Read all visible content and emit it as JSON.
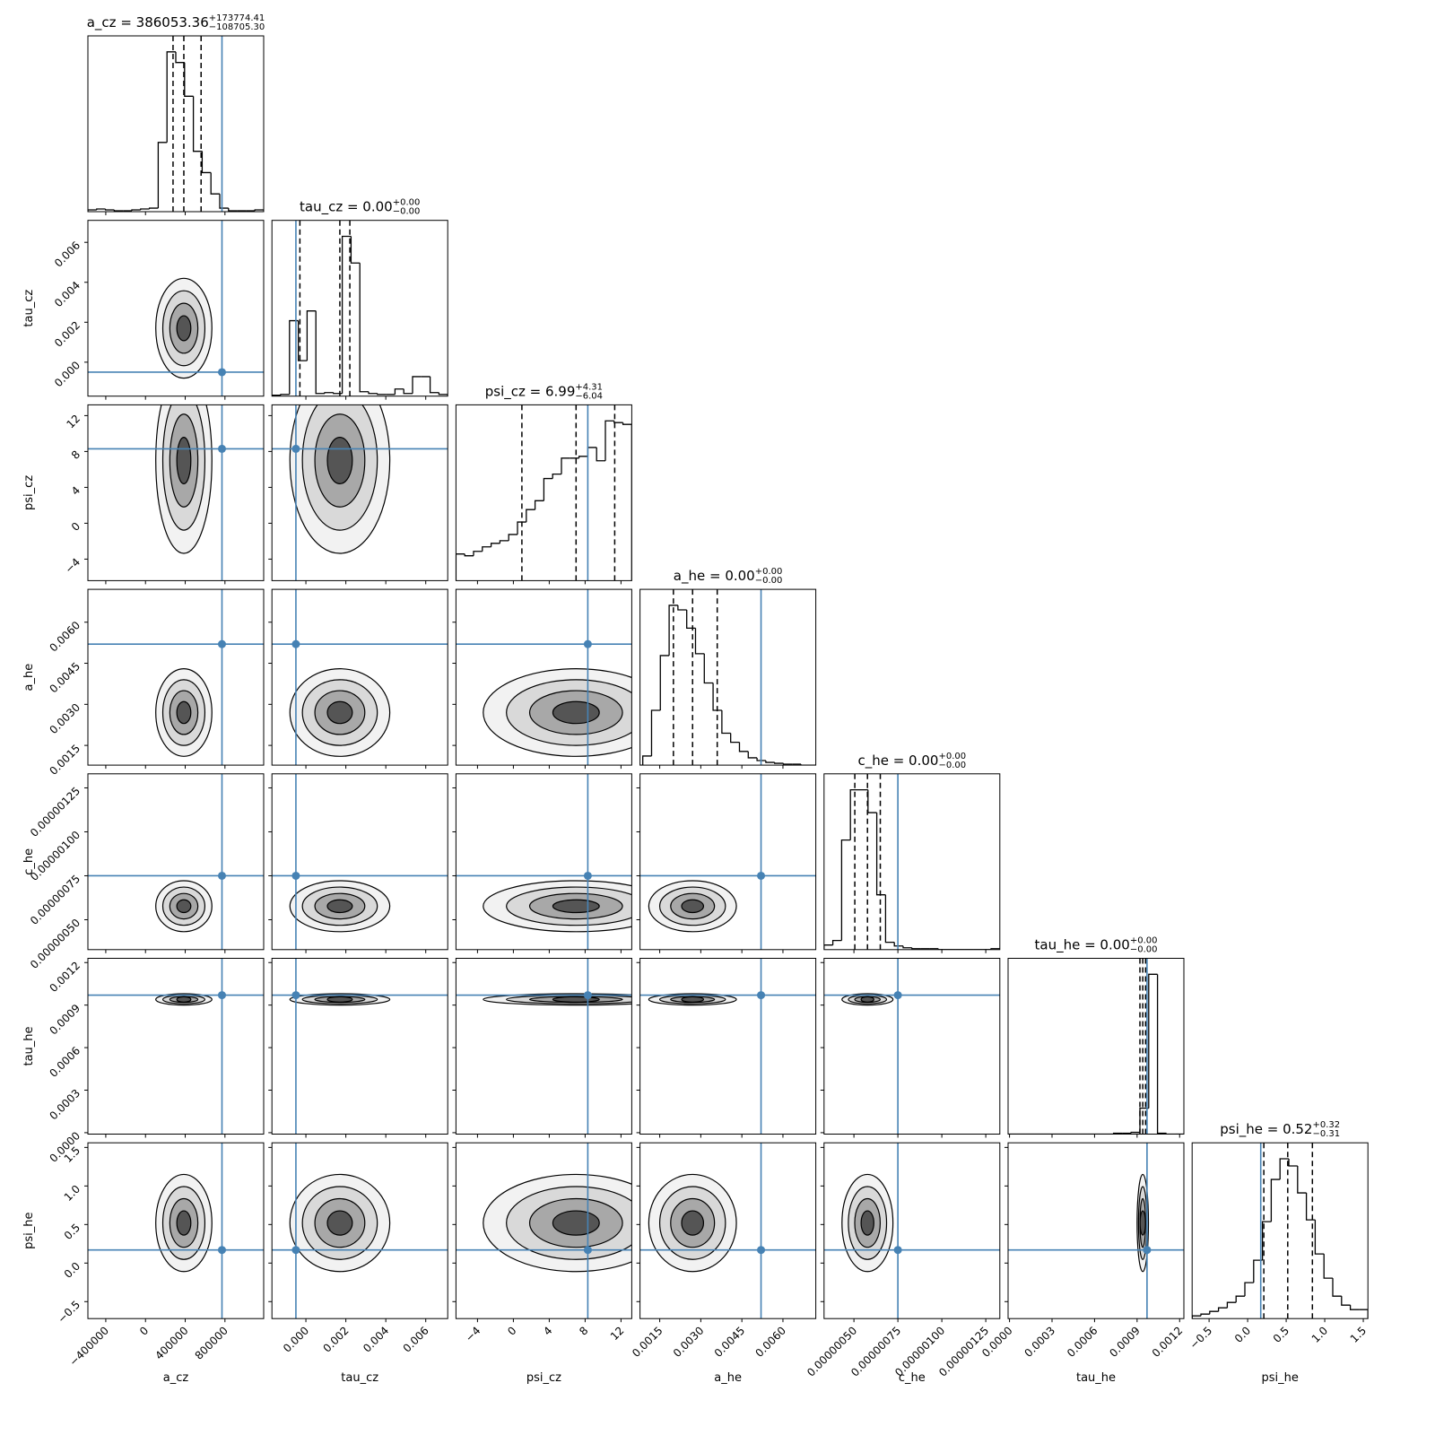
{
  "chart_data": {
    "type": "corner",
    "truth_color": "#4682b4",
    "params": [
      {
        "label": "a_cz",
        "title": "a_cz = 386053.36",
        "title_sup": "+173774.41",
        "title_sub": "−108705.30",
        "lim": [
          -580000,
          1190000
        ],
        "truth": 770000,
        "quantiles": [
          277348.06,
          386053.36,
          559827.77
        ],
        "ticks": [
          {
            "value": -400000,
            "label": "−400000"
          },
          0,
          400000,
          800000
        ],
        "bins": [
          -580000,
          -491500,
          -403000,
          -314500,
          -226000,
          -137500,
          -49000,
          39500,
          128000,
          216500,
          305000,
          393500,
          482000,
          570500,
          659000,
          747500,
          836000,
          924500,
          1013000,
          1101500,
          1190000
        ],
        "counts": [
          2,
          3,
          2,
          1,
          1,
          2,
          3,
          4,
          78,
          180,
          168,
          130,
          68,
          44,
          20,
          4,
          1,
          1,
          1,
          2
        ]
      },
      {
        "label": "tau_cz",
        "title": "tau_cz = 0.00",
        "title_sup": "+0.00",
        "title_sub": "−0.00",
        "lim": [
          -0.0017,
          0.0071
        ],
        "truth": -0.0005,
        "quantiles": [
          -0.0003,
          0.0017,
          0.0022
        ],
        "ticks": [
          {
            "value": 0,
            "label": "0.000"
          },
          0.002,
          0.004,
          0.006
        ],
        "bins": [
          -0.0017,
          -0.00126,
          -0.00082,
          -0.00038,
          6e-05,
          0.0005,
          0.00094,
          0.00138,
          0.00182,
          0.00226,
          0.0027,
          0.00314,
          0.00358,
          0.00402,
          0.00446,
          0.0049,
          0.00534,
          0.00578,
          0.00622,
          0.00666,
          0.0071
        ],
        "counts": [
          1,
          2,
          85,
          40,
          96,
          3,
          4,
          3,
          180,
          150,
          5,
          3,
          2,
          2,
          8,
          3,
          22,
          22,
          4,
          2
        ]
      },
      {
        "label": "psi_cz",
        "title": "psi_cz = 6.99",
        "title_sup": "+4.31",
        "title_sub": "−6.04",
        "lim": [
          -6.4,
          13.2
        ],
        "truth": 8.3,
        "quantiles": [
          0.95,
          6.99,
          11.3
        ],
        "ticks": [
          {
            "value": -4,
            "label": "−4"
          },
          0,
          4,
          8,
          12
        ],
        "bins": [
          -6.4,
          -5.42,
          -4.44,
          -3.46,
          -2.48,
          -1.5,
          -0.52,
          0.46,
          1.44,
          2.42,
          3.4,
          4.38,
          5.36,
          6.34,
          7.32,
          8.3,
          9.28,
          10.26,
          11.24,
          12.22,
          13.2
        ],
        "counts": [
          30,
          28,
          33,
          38,
          42,
          45,
          52,
          66,
          80,
          90,
          115,
          120,
          138,
          138,
          140,
          150,
          135,
          180,
          178,
          176
        ]
      },
      {
        "label": "a_he",
        "title": "a_he = 0.00",
        "title_sup": "+0.00",
        "title_sub": "−0.00",
        "lim": [
          0.00078,
          0.0072
        ],
        "truth": 0.0052,
        "quantiles": [
          0.002,
          0.0027,
          0.0036
        ],
        "ticks": [
          0.0015,
          {
            "value": 0.003,
            "label": "0.0030"
          },
          0.0045,
          {
            "value": 0.006,
            "label": "0.0060"
          }
        ],
        "bins": [
          0.00078,
          0.000881,
          0.001202,
          0.001523,
          0.001844,
          0.002165,
          0.002486,
          0.002807,
          0.003128,
          0.003449,
          0.00377,
          0.004091,
          0.004412,
          0.004733,
          0.005054,
          0.005375,
          0.005696,
          0.006017,
          0.006338,
          0.006659,
          0.0072
        ],
        "counts": [
          0,
          10,
          60,
          120,
          175,
          170,
          150,
          122,
          90,
          60,
          35,
          25,
          15,
          8,
          5,
          3,
          2,
          1,
          1,
          0
        ]
      },
      {
        "label": "c_he",
        "title": "c_he = 0.00",
        "title_sup": "+0.00",
        "title_sub": "−0.00",
        "lim": [
          3.3e-07,
          1.33e-06
        ],
        "truth": 7.5e-07,
        "quantiles": [
          5.05e-07,
          5.77e-07,
          6.5e-07
        ],
        "ticks": [
          {
            "value": 5e-07,
            "label": "0.00000050"
          },
          {
            "value": 7.5e-07,
            "label": "0.00000075"
          },
          {
            "value": 1e-06,
            "label": "0.00000100"
          },
          {
            "value": 1.25e-06,
            "label": "0.00000125"
          }
        ],
        "bins": [
          3.3e-07,
          3.8e-07,
          4.3e-07,
          4.8e-07,
          5.3e-07,
          5.8e-07,
          6.3e-07,
          6.8e-07,
          7.3e-07,
          7.8e-07,
          8.3e-07,
          8.8e-07,
          9.3e-07,
          9.8e-07,
          1.03e-06,
          1.08e-06,
          1.13e-06,
          1.18e-06,
          1.23e-06,
          1.28e-06,
          1.33e-06
        ],
        "counts": [
          5,
          10,
          120,
          175,
          175,
          150,
          60,
          8,
          4,
          2,
          1,
          1,
          1,
          0,
          0,
          0,
          0,
          0,
          0,
          1
        ]
      },
      {
        "label": "tau_he",
        "title": "tau_he = 0.00",
        "title_sup": "+0.00",
        "title_sub": "−0.00",
        "lim": [
          -1e-05,
          0.00123
        ],
        "truth": 0.00097,
        "quantiles": [
          0.00092,
          0.00094,
          0.00096
        ],
        "ticks": [
          {
            "value": 0,
            "label": "0.0000"
          },
          0.0003,
          0.0006,
          0.0009,
          0.0012
        ],
        "bins": [
          -1e-05,
          5.2e-05,
          0.000114,
          0.000176,
          0.000238,
          0.0003,
          0.000362,
          0.000424,
          0.000486,
          0.000548,
          0.00061,
          0.000672,
          0.000734,
          0.000796,
          0.000858,
          0.00092,
          0.000982,
          0.001044,
          0.001106,
          0.001168,
          0.00123
        ],
        "counts": [
          0,
          0,
          0,
          0,
          0,
          0,
          0,
          0,
          0,
          0,
          0,
          0,
          1,
          1,
          2,
          30,
          185,
          1,
          0,
          0
        ]
      },
      {
        "label": "psi_he",
        "title": "psi_he = 0.52",
        "title_sup": "+0.32",
        "title_sub": "−0.31",
        "lim": [
          -0.72,
          1.56
        ],
        "truth": 0.17,
        "quantiles": [
          0.21,
          0.52,
          0.84
        ],
        "ticks": [
          {
            "value": -0.5,
            "label": "−0.5"
          },
          {
            "value": 0,
            "label": "0.0"
          },
          0.5,
          {
            "value": 1,
            "label": "1.0"
          },
          1.5
        ],
        "bins": [
          -0.72,
          -0.606,
          -0.492,
          -0.378,
          -0.264,
          -0.15,
          -0.036,
          0.078,
          0.192,
          0.306,
          0.42,
          0.534,
          0.648,
          0.762,
          0.876,
          0.99,
          1.104,
          1.218,
          1.332,
          1.446,
          1.56
        ],
        "counts": [
          3,
          5,
          8,
          12,
          18,
          25,
          40,
          65,
          108,
          155,
          178,
          170,
          140,
          110,
          72,
          45,
          25,
          15,
          10,
          10
        ]
      }
    ]
  }
}
